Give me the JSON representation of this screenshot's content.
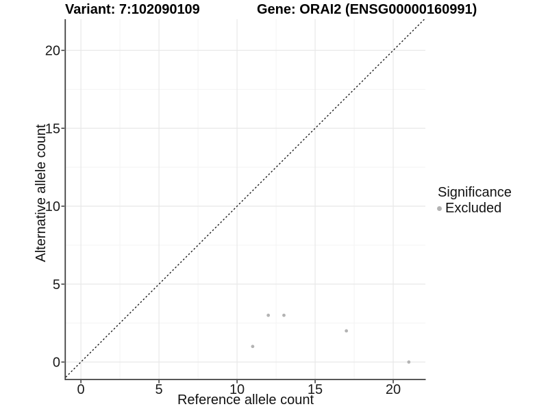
{
  "header": {
    "variant_title": "Variant: 7:102090109",
    "gene_title": "Gene: ORAI2 (ENSG00000160991)"
  },
  "chart_data": {
    "type": "scatter",
    "xlabel": "Reference allele count",
    "ylabel": "Alternative allele count",
    "xlim": [
      -0.97,
      22.06
    ],
    "ylim": [
      -1.12,
      22.0
    ],
    "x_major_ticks": [
      0,
      5,
      10,
      15,
      20
    ],
    "x_minor_ticks": [
      2.5,
      7.5,
      12.5,
      17.5
    ],
    "y_major_ticks": [
      0,
      5,
      10,
      15,
      20
    ],
    "y_minor_ticks": [
      2.5,
      7.5,
      12.5,
      17.5
    ],
    "grid": true,
    "identity_line": {
      "equation": "y = x",
      "style": "dashed",
      "color": "#1a1a1a"
    },
    "series": [
      {
        "name": "Excluded",
        "color": "#b3b3b3",
        "points": [
          {
            "x": 11,
            "y": 1
          },
          {
            "x": 12,
            "y": 3
          },
          {
            "x": 13,
            "y": 3
          },
          {
            "x": 17,
            "y": 2
          },
          {
            "x": 21,
            "y": 0
          }
        ]
      }
    ],
    "legend": {
      "title": "Significance",
      "position": "right",
      "items": [
        {
          "label": "Excluded",
          "color": "#b3b3b3"
        }
      ]
    }
  },
  "colors": {
    "background": "#ffffff",
    "grid_major": "#e8e8e8",
    "grid_minor": "#f3f3f3",
    "axis_line": "#404040",
    "tick_mark": "#333333",
    "tick_label": "#1a1a1a"
  }
}
